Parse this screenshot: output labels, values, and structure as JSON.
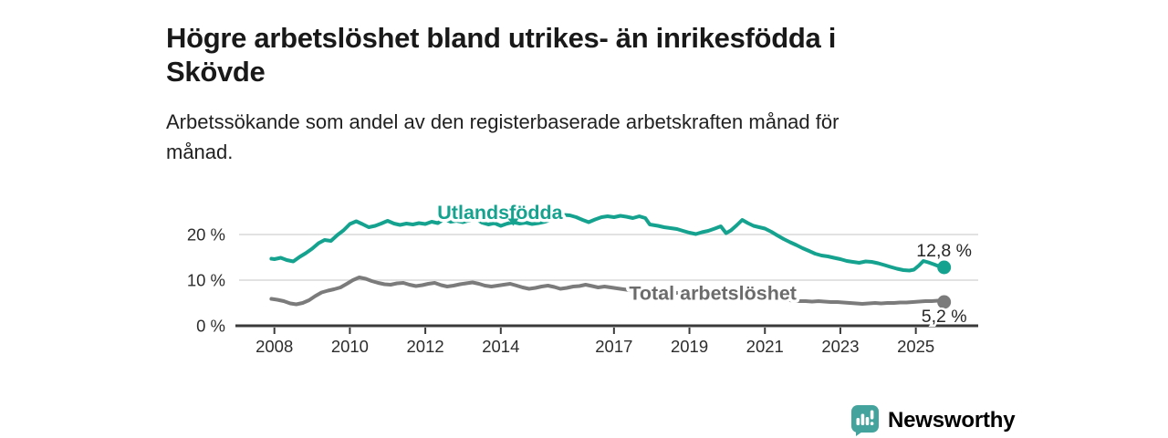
{
  "header": {
    "title_line1": "Högre arbetslöshet bland utrikes- än inrikesfödda i",
    "title_line2": "Skövde",
    "subtitle_line1": "Arbetssökande som andel av den registerbaserade arbetskraften månad för",
    "subtitle_line2": "månad."
  },
  "footer": {
    "brand": "Newsworthy"
  },
  "colors": {
    "accent_teal": "#15a390",
    "gray_line": "#7b7b7b",
    "gray_label": "#6c6c6c",
    "grid": "#d8d8d8",
    "axis": "#3a3a3a",
    "tick_text": "#2d2d2d",
    "value_text": "#262626",
    "logo_teal": "#44a39c",
    "brand_text": "#3d9d97"
  },
  "chart_data": {
    "type": "line",
    "title": "Högre arbetslöshet bland utrikes- än inrikesfödda i Skövde",
    "subtitle": "Arbetssökande som andel av den registerbaserade arbetskraften månad för månad.",
    "xlabel": "",
    "ylabel": "",
    "xlim": [
      2007.9,
      2026.3
    ],
    "ylim": [
      0,
      26
    ],
    "grid": "horizontal",
    "legend_position": "inline-labels",
    "x_ticks": [
      2008,
      2010,
      2012,
      2014,
      2017,
      2019,
      2021,
      2023,
      2025
    ],
    "y_ticks": [
      {
        "value": 0,
        "label": "0 %"
      },
      {
        "value": 10,
        "label": "10 %"
      },
      {
        "value": 20,
        "label": "20 %"
      }
    ],
    "series": [
      {
        "id": "utlandsfodda",
        "name": "Utlandsfödda",
        "color": "#15a390",
        "label_color": "#15a390",
        "end_label": "12,8 %",
        "end_value": 12.8,
        "label_pos": {
          "year": 2013.98,
          "value": 23.4
        },
        "marker": {
          "year": 2014.33,
          "value": 22.9
        },
        "end_label_offset": [
          0,
          -12
        ],
        "points": [
          [
            2007.92,
            14.7
          ],
          [
            2008.0,
            14.6
          ],
          [
            2008.17,
            14.9
          ],
          [
            2008.33,
            14.4
          ],
          [
            2008.5,
            14.1
          ],
          [
            2008.67,
            15.1
          ],
          [
            2008.83,
            15.9
          ],
          [
            2009.0,
            16.9
          ],
          [
            2009.17,
            18.1
          ],
          [
            2009.33,
            18.8
          ],
          [
            2009.5,
            18.6
          ],
          [
            2009.67,
            19.9
          ],
          [
            2009.83,
            20.9
          ],
          [
            2010.0,
            22.3
          ],
          [
            2010.17,
            22.9
          ],
          [
            2010.33,
            22.3
          ],
          [
            2010.5,
            21.6
          ],
          [
            2010.67,
            21.9
          ],
          [
            2010.83,
            22.4
          ],
          [
            2011.0,
            23.0
          ],
          [
            2011.17,
            22.4
          ],
          [
            2011.33,
            22.1
          ],
          [
            2011.5,
            22.4
          ],
          [
            2011.67,
            22.2
          ],
          [
            2011.83,
            22.5
          ],
          [
            2012.0,
            22.3
          ],
          [
            2012.17,
            22.8
          ],
          [
            2012.33,
            22.5
          ],
          [
            2012.5,
            23.4
          ],
          [
            2012.67,
            22.8
          ],
          [
            2012.83,
            23.0
          ],
          [
            2013.0,
            22.7
          ],
          [
            2013.17,
            23.1
          ],
          [
            2013.33,
            23.5
          ],
          [
            2013.5,
            22.6
          ],
          [
            2013.67,
            22.2
          ],
          [
            2013.83,
            22.5
          ],
          [
            2014.0,
            21.9
          ],
          [
            2014.17,
            22.4
          ],
          [
            2014.33,
            22.7
          ],
          [
            2014.5,
            22.4
          ],
          [
            2014.67,
            22.6
          ],
          [
            2014.83,
            22.3
          ],
          [
            2015.0,
            22.5
          ],
          [
            2015.17,
            22.8
          ],
          [
            2015.33,
            23.2
          ],
          [
            2015.5,
            23.8
          ],
          [
            2015.67,
            24.3
          ],
          [
            2015.83,
            24.2
          ],
          [
            2016.0,
            23.8
          ],
          [
            2016.17,
            23.2
          ],
          [
            2016.33,
            22.7
          ],
          [
            2016.5,
            23.3
          ],
          [
            2016.67,
            23.8
          ],
          [
            2016.83,
            24.0
          ],
          [
            2017.0,
            23.8
          ],
          [
            2017.17,
            24.1
          ],
          [
            2017.33,
            23.9
          ],
          [
            2017.5,
            23.6
          ],
          [
            2017.67,
            24.0
          ],
          [
            2017.83,
            23.6
          ],
          [
            2017.95,
            22.2
          ],
          [
            2018.17,
            21.9
          ],
          [
            2018.33,
            21.6
          ],
          [
            2018.5,
            21.4
          ],
          [
            2018.67,
            21.2
          ],
          [
            2018.83,
            20.8
          ],
          [
            2019.0,
            20.4
          ],
          [
            2019.17,
            20.1
          ],
          [
            2019.33,
            20.5
          ],
          [
            2019.5,
            20.8
          ],
          [
            2019.67,
            21.3
          ],
          [
            2019.83,
            21.8
          ],
          [
            2019.97,
            20.3
          ],
          [
            2020.1,
            20.9
          ],
          [
            2020.25,
            22.0
          ],
          [
            2020.4,
            23.2
          ],
          [
            2020.55,
            22.5
          ],
          [
            2020.7,
            21.9
          ],
          [
            2020.85,
            21.6
          ],
          [
            2021.0,
            21.3
          ],
          [
            2021.17,
            20.6
          ],
          [
            2021.33,
            19.8
          ],
          [
            2021.5,
            19.0
          ],
          [
            2021.67,
            18.3
          ],
          [
            2021.83,
            17.7
          ],
          [
            2022.0,
            17.0
          ],
          [
            2022.17,
            16.4
          ],
          [
            2022.33,
            15.8
          ],
          [
            2022.5,
            15.4
          ],
          [
            2022.67,
            15.2
          ],
          [
            2022.83,
            14.9
          ],
          [
            2023.0,
            14.6
          ],
          [
            2023.17,
            14.2
          ],
          [
            2023.33,
            14.0
          ],
          [
            2023.5,
            13.8
          ],
          [
            2023.67,
            14.1
          ],
          [
            2023.83,
            14.0
          ],
          [
            2024.0,
            13.7
          ],
          [
            2024.17,
            13.3
          ],
          [
            2024.33,
            12.9
          ],
          [
            2024.5,
            12.5
          ],
          [
            2024.67,
            12.2
          ],
          [
            2024.83,
            12.1
          ],
          [
            2024.95,
            12.3
          ],
          [
            2025.08,
            13.2
          ],
          [
            2025.2,
            14.2
          ],
          [
            2025.33,
            13.9
          ],
          [
            2025.5,
            13.4
          ],
          [
            2025.62,
            13.0
          ],
          [
            2025.75,
            12.8
          ]
        ]
      },
      {
        "id": "total",
        "name": "Total arbetslöshet",
        "color": "#7b7b7b",
        "label_color": "#6c6c6c",
        "end_label": "5,2 %",
        "end_value": 5.2,
        "label_pos": {
          "year": 2019.62,
          "value": 5.7
        },
        "end_label_offset": [
          0,
          22
        ],
        "points": [
          [
            2007.92,
            5.9
          ],
          [
            2008.08,
            5.7
          ],
          [
            2008.25,
            5.4
          ],
          [
            2008.42,
            4.9
          ],
          [
            2008.58,
            4.7
          ],
          [
            2008.75,
            5.0
          ],
          [
            2008.92,
            5.6
          ],
          [
            2009.08,
            6.5
          ],
          [
            2009.25,
            7.3
          ],
          [
            2009.42,
            7.7
          ],
          [
            2009.58,
            8.0
          ],
          [
            2009.75,
            8.4
          ],
          [
            2009.92,
            9.2
          ],
          [
            2010.08,
            10.0
          ],
          [
            2010.25,
            10.6
          ],
          [
            2010.42,
            10.3
          ],
          [
            2010.58,
            9.8
          ],
          [
            2010.75,
            9.4
          ],
          [
            2010.92,
            9.1
          ],
          [
            2011.08,
            9.0
          ],
          [
            2011.25,
            9.3
          ],
          [
            2011.42,
            9.4
          ],
          [
            2011.58,
            9.0
          ],
          [
            2011.75,
            8.7
          ],
          [
            2011.92,
            8.9
          ],
          [
            2012.08,
            9.2
          ],
          [
            2012.25,
            9.4
          ],
          [
            2012.42,
            8.9
          ],
          [
            2012.58,
            8.6
          ],
          [
            2012.75,
            8.8
          ],
          [
            2012.92,
            9.1
          ],
          [
            2013.08,
            9.3
          ],
          [
            2013.25,
            9.5
          ],
          [
            2013.42,
            9.2
          ],
          [
            2013.58,
            8.8
          ],
          [
            2013.75,
            8.6
          ],
          [
            2013.92,
            8.8
          ],
          [
            2014.08,
            9.0
          ],
          [
            2014.25,
            9.2
          ],
          [
            2014.42,
            8.8
          ],
          [
            2014.58,
            8.4
          ],
          [
            2014.75,
            8.1
          ],
          [
            2014.92,
            8.3
          ],
          [
            2015.08,
            8.6
          ],
          [
            2015.25,
            8.8
          ],
          [
            2015.42,
            8.5
          ],
          [
            2015.58,
            8.1
          ],
          [
            2015.75,
            8.3
          ],
          [
            2015.92,
            8.6
          ],
          [
            2016.08,
            8.7
          ],
          [
            2016.25,
            9.0
          ],
          [
            2016.42,
            8.7
          ],
          [
            2016.58,
            8.4
          ],
          [
            2016.75,
            8.6
          ],
          [
            2016.92,
            8.4
          ],
          [
            2017.08,
            8.2
          ],
          [
            2017.25,
            8.0
          ],
          [
            2017.42,
            7.8
          ],
          [
            2017.58,
            7.6
          ],
          [
            2017.75,
            7.8
          ],
          [
            2017.92,
            7.7
          ],
          [
            2018.08,
            7.4
          ],
          [
            2018.25,
            7.2
          ],
          [
            2018.42,
            7.1
          ],
          [
            2018.58,
            7.3
          ],
          [
            2018.75,
            7.1
          ],
          [
            2018.92,
            6.9
          ],
          [
            2019.08,
            6.8
          ],
          [
            2019.25,
            6.9
          ],
          [
            2019.42,
            6.8
          ],
          [
            2019.58,
            6.9
          ],
          [
            2019.75,
            7.0
          ],
          [
            2020.0,
            7.2
          ],
          [
            2020.25,
            7.7
          ],
          [
            2020.5,
            7.5
          ],
          [
            2020.75,
            7.1
          ],
          [
            2021.0,
            6.6
          ],
          [
            2021.25,
            6.2
          ],
          [
            2021.5,
            5.8
          ],
          [
            2021.75,
            5.5
          ],
          [
            2021.92,
            5.4
          ],
          [
            2022.08,
            5.4
          ],
          [
            2022.25,
            5.3
          ],
          [
            2022.42,
            5.4
          ],
          [
            2022.58,
            5.3
          ],
          [
            2022.75,
            5.2
          ],
          [
            2022.92,
            5.2
          ],
          [
            2023.08,
            5.1
          ],
          [
            2023.25,
            5.0
          ],
          [
            2023.42,
            4.9
          ],
          [
            2023.58,
            4.8
          ],
          [
            2023.75,
            4.9
          ],
          [
            2023.92,
            5.0
          ],
          [
            2024.08,
            4.9
          ],
          [
            2024.25,
            5.0
          ],
          [
            2024.42,
            5.0
          ],
          [
            2024.58,
            5.1
          ],
          [
            2024.75,
            5.1
          ],
          [
            2024.92,
            5.2
          ],
          [
            2025.08,
            5.3
          ],
          [
            2025.25,
            5.4
          ],
          [
            2025.42,
            5.4
          ],
          [
            2025.58,
            5.5
          ],
          [
            2025.75,
            5.2
          ]
        ]
      }
    ]
  }
}
